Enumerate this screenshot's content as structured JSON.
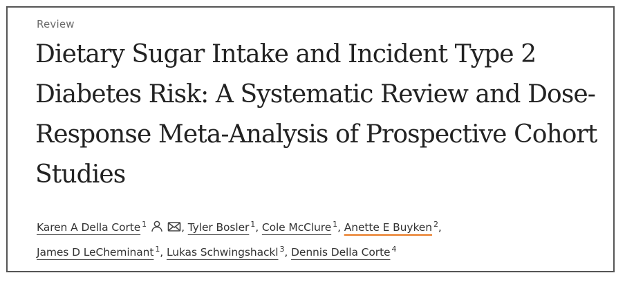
{
  "article": {
    "type": "Review",
    "title": "Dietary Sugar Intake and Incident Type 2 Diabetes Risk: A Systematic Review and Dose-Response Meta-Analysis of Prospective Cohort Studies"
  },
  "authors": [
    {
      "name": "Karen A Della Corte",
      "affiliation": "1",
      "icons": [
        "person-icon",
        "mail-icon"
      ],
      "separator": ","
    },
    {
      "name": "Tyler Bosler",
      "affiliation": "1",
      "separator": ","
    },
    {
      "name": "Cole McClure",
      "affiliation": "1",
      "separator": ","
    },
    {
      "name": "Anette E Buyken",
      "affiliation": "2",
      "separator": ",",
      "highlighted": true
    },
    {
      "name": "James D LeCheminant",
      "affiliation": "1",
      "separator": ","
    },
    {
      "name": "Lukas Schwingshackl",
      "affiliation": "3",
      "separator": ","
    },
    {
      "name": "Dennis Della Corte",
      "affiliation": "4",
      "separator": ""
    }
  ],
  "colors": {
    "highlight_underline": "#e8771f",
    "frame_border": "#555555",
    "title_text": "#222222"
  }
}
